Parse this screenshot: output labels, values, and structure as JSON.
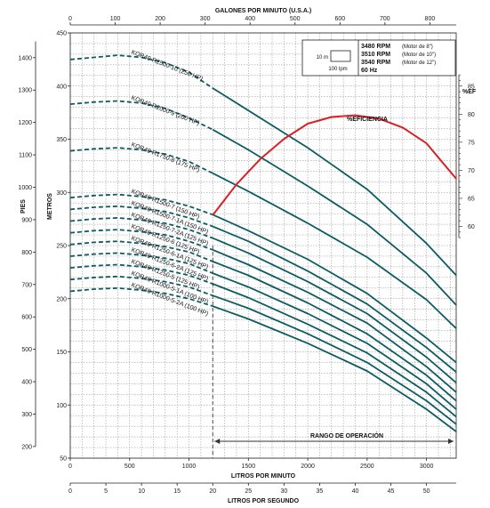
{
  "chart_data": {
    "type": "line",
    "top_axis": {
      "label": "GALONES POR MINUTO (U.S.A.)",
      "ticks": [
        0,
        100,
        200,
        300,
        400,
        500,
        600,
        700,
        800
      ]
    },
    "bottom_axis": {
      "label": "LITROS POR MINUTO",
      "ticks": [
        0,
        500,
        1000,
        1500,
        2000,
        2500,
        3000
      ],
      "range": [
        0,
        3250
      ]
    },
    "bottom_axis2": {
      "label": "LITROS POR SEGUNDO",
      "ticks": [
        0,
        5,
        10,
        15,
        20,
        25,
        30,
        35,
        40,
        45,
        50
      ]
    },
    "left_axis_metros": {
      "label": "METROS",
      "ticks": [
        50,
        100,
        150,
        200,
        250,
        300,
        350,
        400,
        450
      ],
      "range": [
        50,
        450
      ]
    },
    "left_axis_pies": {
      "label": "PIES",
      "ticks": [
        200,
        300,
        400,
        500,
        600,
        700,
        800,
        900,
        1000,
        1100,
        1200,
        1300,
        1400
      ]
    },
    "right_axis": {
      "label": "%EF",
      "ticks": [
        60,
        65,
        70,
        75,
        80,
        85
      ]
    },
    "legend": {
      "scale_v": "10 m",
      "scale_h": "100 lpm",
      "rpm_lines": [
        {
          "rpm": "3480 RPM",
          "motor": "(Motor de 8\")"
        },
        {
          "rpm": "3510 RPM",
          "motor": "(Motor de 10\")"
        },
        {
          "rpm": "3540 RPM",
          "motor": "(Motor de 12\")"
        },
        {
          "rpm": "60 Hz",
          "motor": ""
        }
      ]
    },
    "efficiency_label": "%EFICIENCIA",
    "operation_label": "RANGO DE OPERACIÓN",
    "operation_range": [
      1200,
      3250
    ],
    "series": [
      {
        "name": "KOR40 R2500-10 (250 HP)",
        "x": [
          0,
          200,
          400,
          600,
          800,
          1000,
          1200,
          1500,
          2000,
          2500,
          3000,
          3250
        ],
        "y": [
          425,
          427,
          429,
          427,
          422,
          413,
          398,
          377,
          342,
          303,
          252,
          222
        ]
      },
      {
        "name": "KOR40 R2000-9 (200 HP)",
        "x": [
          0,
          200,
          400,
          600,
          800,
          1000,
          1200,
          1500,
          2000,
          2500,
          3000,
          3250
        ],
        "y": [
          383,
          385,
          386,
          384,
          379,
          370,
          359,
          340,
          306,
          270,
          224,
          194
        ]
      },
      {
        "name": "KOR40 R1750-8 (175 HP)",
        "x": [
          0,
          200,
          400,
          600,
          800,
          1000,
          1200,
          1500,
          2000,
          2500,
          3000,
          3250
        ],
        "y": [
          339,
          341,
          342,
          340,
          336,
          329,
          318,
          301,
          271,
          239,
          199,
          172
        ]
      },
      {
        "name": "KOR40 R1500-7 (150 HP)",
        "x": [
          0,
          200,
          400,
          600,
          800,
          1000,
          1200,
          1500,
          2000,
          2500,
          3000,
          3250
        ],
        "y": [
          295,
          297,
          298,
          296,
          293,
          287,
          279,
          264,
          237,
          205,
          163,
          140
        ]
      },
      {
        "name": "KOR40 R1500-7-1A (150 HP)",
        "x": [
          0,
          200,
          400,
          600,
          800,
          1000,
          1200,
          1500,
          2000,
          2500,
          3000,
          3250
        ],
        "y": [
          284,
          286,
          287,
          285,
          282,
          276,
          268,
          254,
          226,
          195,
          154,
          131
        ]
      },
      {
        "name": "KOR40 R1250-7-2A (125 HP)",
        "x": [
          0,
          200,
          400,
          600,
          800,
          1000,
          1200,
          1500,
          2000,
          2500,
          3000,
          3250
        ],
        "y": [
          273,
          275,
          276,
          274,
          271,
          265,
          257,
          243,
          216,
          186,
          145,
          121
        ]
      },
      {
        "name": "KOR40 R1250-6 (125 HP)",
        "x": [
          0,
          200,
          400,
          600,
          800,
          1000,
          1200,
          1500,
          2000,
          2500,
          3000,
          3250
        ],
        "y": [
          262,
          264,
          265,
          263,
          260,
          254,
          246,
          232,
          206,
          177,
          136,
          112
        ]
      },
      {
        "name": "KOR40 R1250-6-1A (125 HP)",
        "x": [
          0,
          200,
          400,
          600,
          800,
          1000,
          1200,
          1500,
          2000,
          2500,
          3000,
          3250
        ],
        "y": [
          251,
          253,
          254,
          252,
          249,
          244,
          235,
          222,
          196,
          167,
          128,
          104
        ]
      },
      {
        "name": "KOR40 R1250-6-2A (125 HP)",
        "x": [
          0,
          200,
          400,
          600,
          800,
          1000,
          1200,
          1500,
          2000,
          2500,
          3000,
          3250
        ],
        "y": [
          240,
          242,
          243,
          241,
          238,
          233,
          224,
          211,
          186,
          158,
          120,
          96
        ]
      },
      {
        "name": "KOR40 R1250-5 (125 HP)",
        "x": [
          0,
          200,
          400,
          600,
          800,
          1000,
          1200,
          1500,
          2000,
          2500,
          3000,
          3250
        ],
        "y": [
          229,
          231,
          232,
          230,
          227,
          222,
          214,
          201,
          176,
          149,
          112,
          89
        ]
      },
      {
        "name": "KOR40 R1000-5-1A (100 HP)",
        "x": [
          0,
          200,
          400,
          600,
          800,
          1000,
          1200,
          1500,
          2000,
          2500,
          3000,
          3250
        ],
        "y": [
          218,
          220,
          221,
          219,
          216,
          211,
          203,
          191,
          167,
          140,
          104,
          82
        ]
      },
      {
        "name": "KOR40 R1000-5-2A (100 HP)",
        "x": [
          0,
          200,
          400,
          600,
          800,
          1000,
          1200,
          1500,
          2000,
          2500,
          3000,
          3250
        ],
        "y": [
          207,
          209,
          210,
          208,
          205,
          200,
          193,
          181,
          158,
          132,
          96,
          75
        ]
      }
    ],
    "efficiency": {
      "name": "%EFICIENCIA",
      "x": [
        1200,
        1400,
        1600,
        1800,
        2000,
        2200,
        2400,
        2600,
        2800,
        3000,
        3250
      ],
      "y": [
        62,
        67.5,
        72,
        75.6,
        78.3,
        79.5,
        79.8,
        79.2,
        77.6,
        74.8,
        68.5
      ]
    },
    "colors": {
      "curve": "#0d5c63",
      "efficiency": "#d92027",
      "grid": "#8a8a8a",
      "operation": "#333333"
    }
  }
}
